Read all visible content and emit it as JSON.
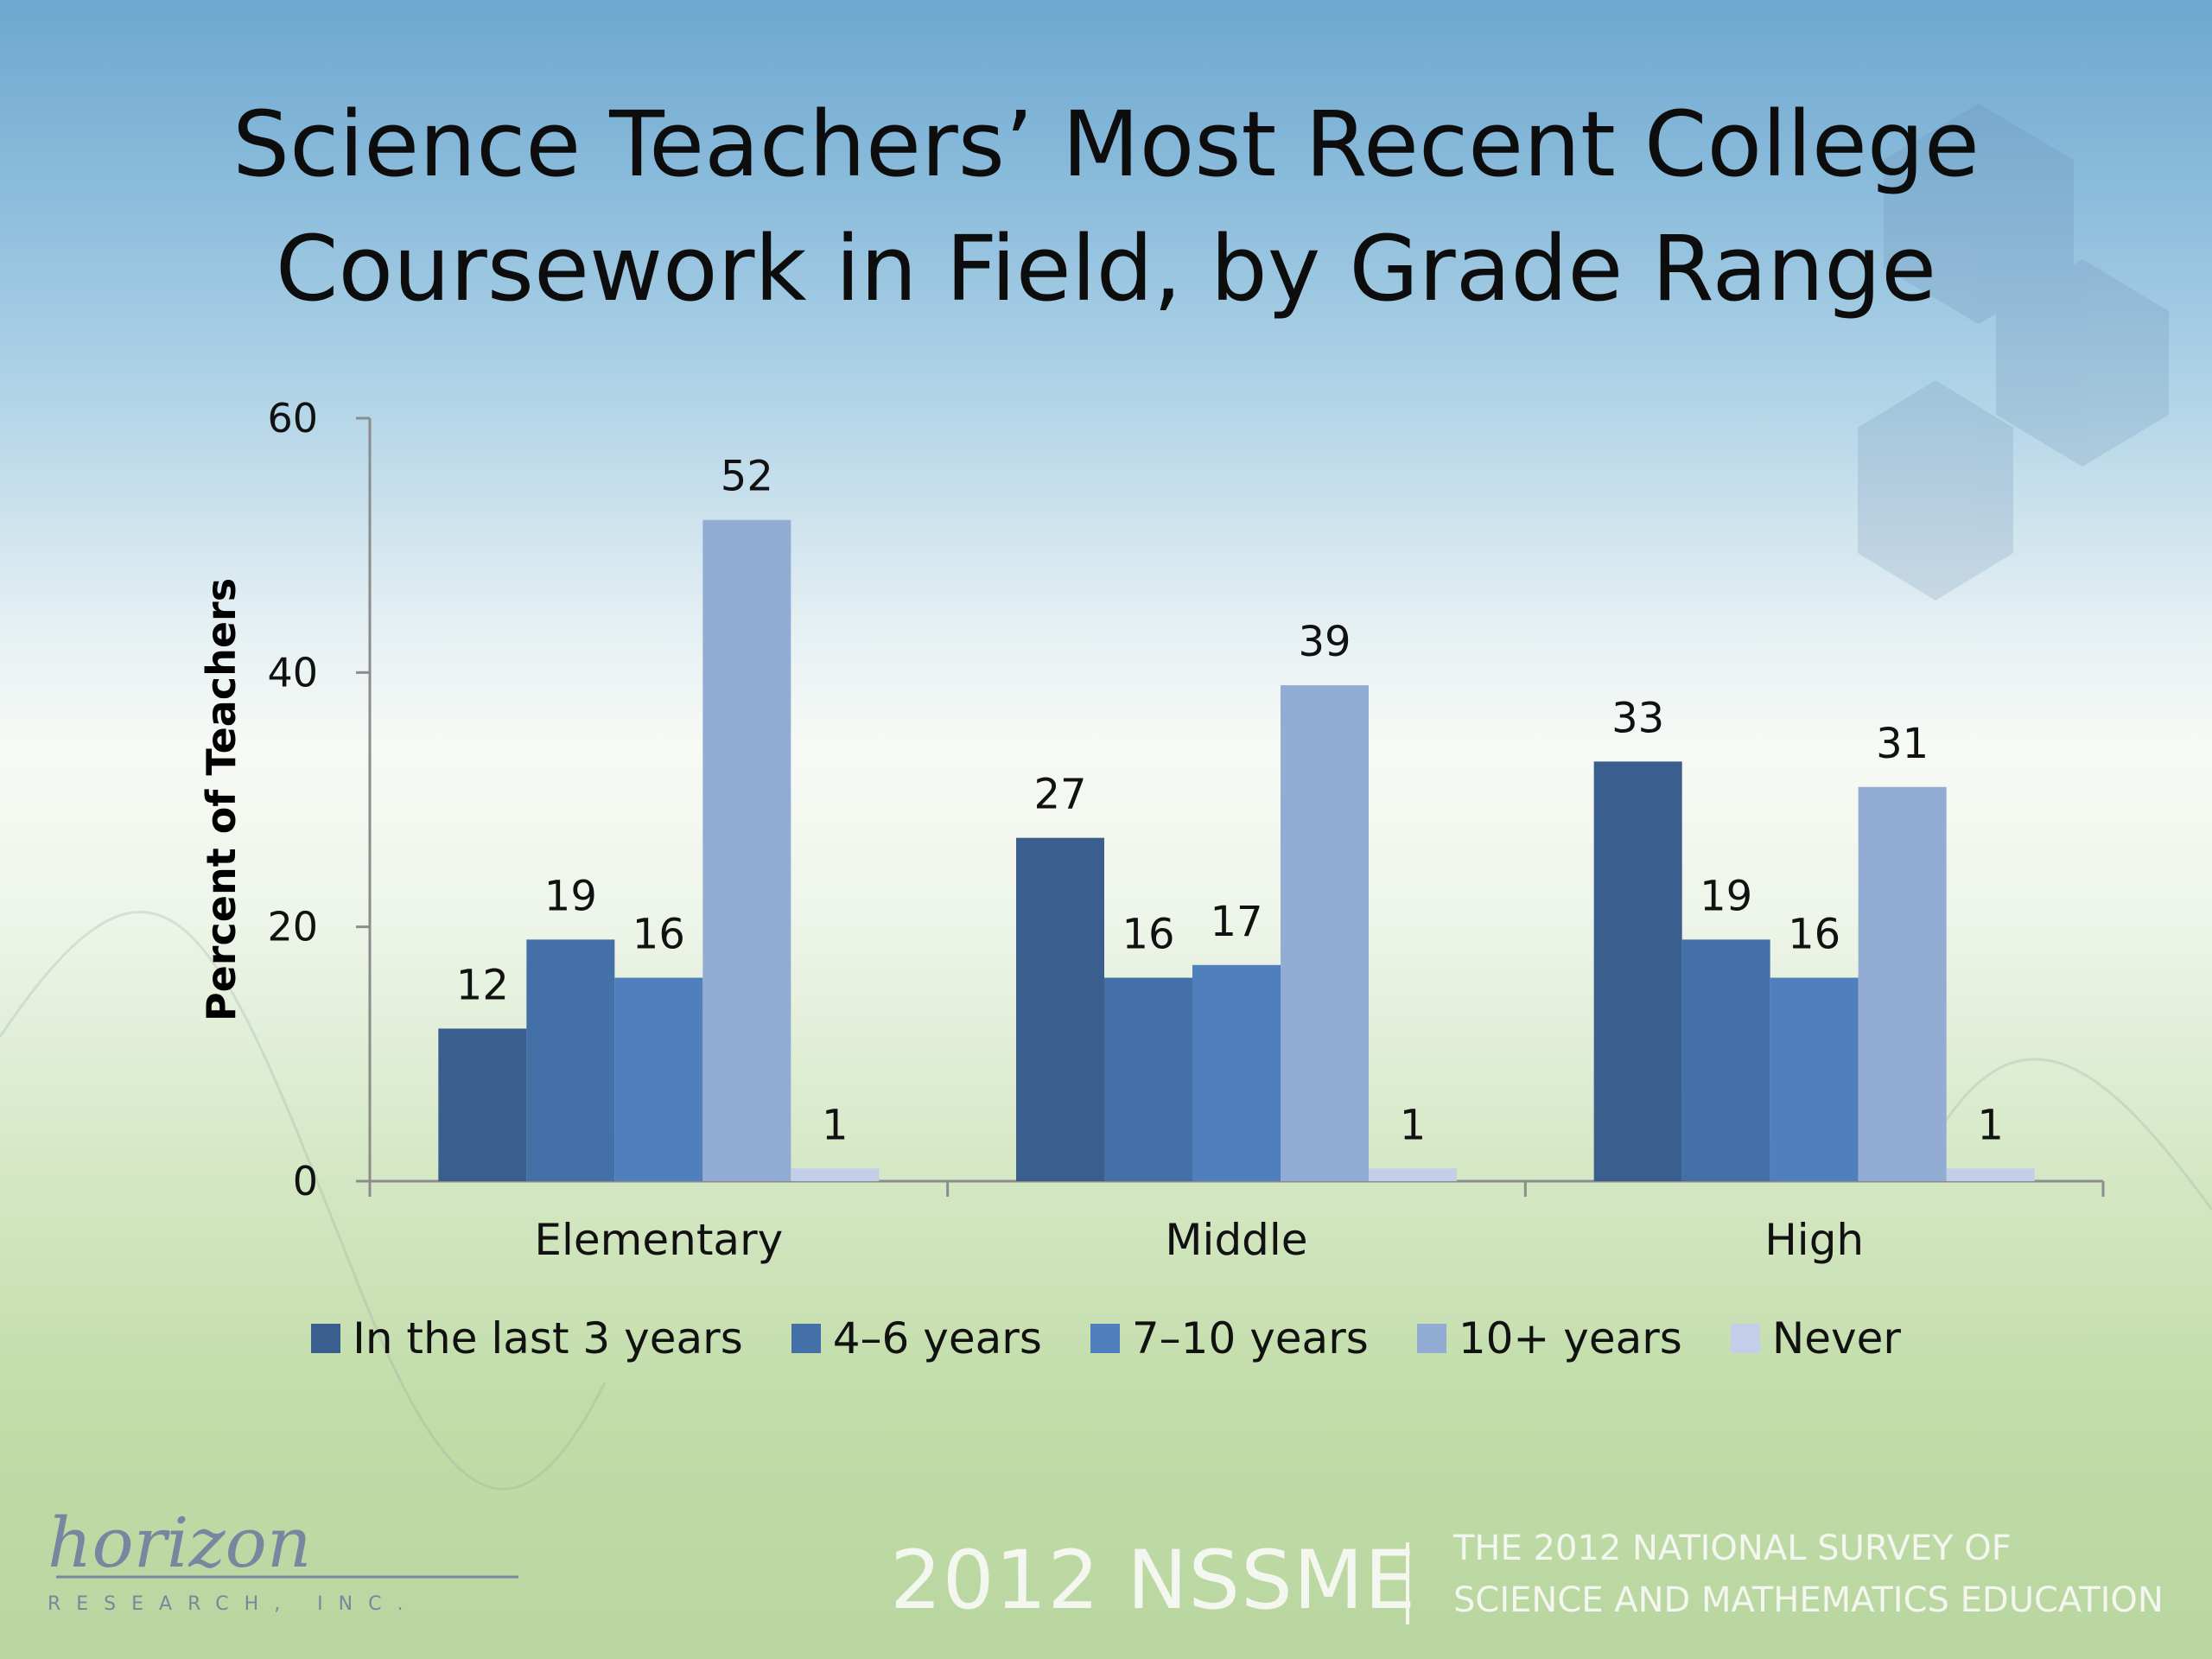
{
  "slide": {
    "title_line1": "Science Teachers’ Most Recent College",
    "title_line2": "Coursework in Field, by Grade Range"
  },
  "chart_data": {
    "type": "bar",
    "title": "Science Teachers’ Most Recent College Coursework in Field, by Grade Range",
    "xlabel": "",
    "ylabel": "Percent of Teachers",
    "ylim": [
      0,
      60
    ],
    "yticks": [
      "0",
      "20",
      "40",
      "60"
    ],
    "categories": [
      "Elementary",
      "Middle",
      "High"
    ],
    "series": [
      {
        "name": "In the last 3 years",
        "color": "#3a5f8f",
        "values": [
          12,
          27,
          33
        ]
      },
      {
        "name": "4–6 years",
        "color": "#4470a8",
        "values": [
          19,
          16,
          19
        ]
      },
      {
        "name": "7–10 years",
        "color": "#4f80bd",
        "values": [
          16,
          17,
          16
        ]
      },
      {
        "name": "10+ years",
        "color": "#93acd4",
        "values": [
          52,
          39,
          31
        ]
      },
      {
        "name": "Never",
        "color": "#c3cfe8",
        "values": [
          1,
          1,
          1
        ]
      }
    ],
    "data_labels": true,
    "grid": false,
    "legend_position": "bottom"
  },
  "footer": {
    "logo_word": "horizon",
    "logo_sub": "RESEARCH, INC.",
    "survey_short": "2012 NSSME",
    "survey_full_line1": "THE 2012 NATIONAL SURVEY OF",
    "survey_full_line2": "SCIENCE AND MATHEMATICS EDUCATION"
  }
}
